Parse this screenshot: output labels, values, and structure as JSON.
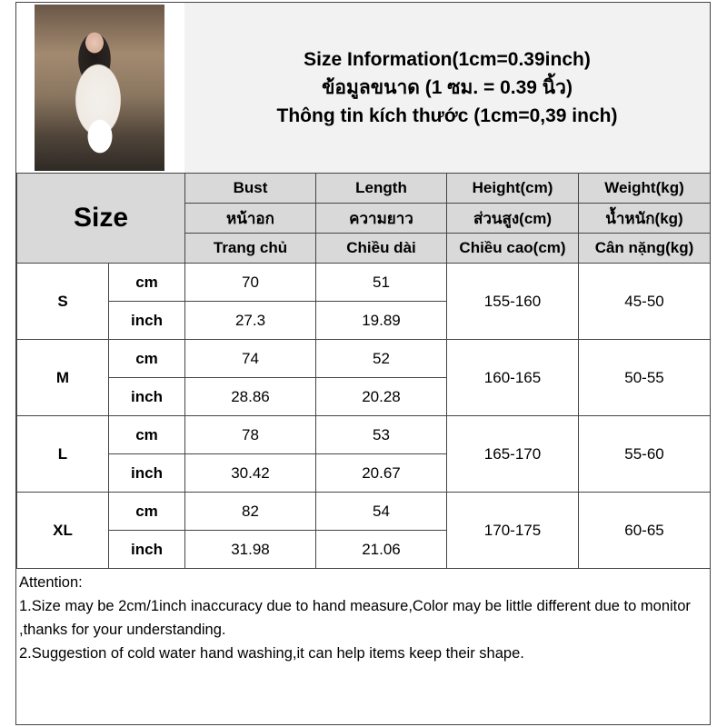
{
  "title_lines": [
    "Size Information(1cm=0.39inch)",
    "ข้อมูลขนาด (1 ซม. = 0.39 นิ้ว)",
    "Thông tin kích thước (1cm=0,39 inch)"
  ],
  "header": {
    "size_label": "Size",
    "columns": [
      {
        "en": "Bust",
        "th": "หน้าอก",
        "vi": "Trang chủ"
      },
      {
        "en": "Length",
        "th": "ความยาว",
        "vi": "Chiều dài"
      },
      {
        "en": "Height(cm)",
        "th": "ส่วนสูง(cm)",
        "vi": "Chiều cao(cm)"
      },
      {
        "en": "Weight(kg)",
        "th": "น้ำหนัก(kg)",
        "vi": "Cân nặng(kg)"
      }
    ]
  },
  "units": {
    "cm": "cm",
    "inch": "inch"
  },
  "rows": [
    {
      "size": "S",
      "bust_cm": "70",
      "length_cm": "51",
      "bust_in": "27.3",
      "length_in": "19.89",
      "height": "155-160",
      "weight": "45-50"
    },
    {
      "size": "M",
      "bust_cm": "74",
      "length_cm": "52",
      "bust_in": "28.86",
      "length_in": "20.28",
      "height": "160-165",
      "weight": "50-55"
    },
    {
      "size": "L",
      "bust_cm": "78",
      "length_cm": "53",
      "bust_in": "30.42",
      "length_in": "20.67",
      "height": "165-170",
      "weight": "55-60"
    },
    {
      "size": "XL",
      "bust_cm": "82",
      "length_cm": "54",
      "bust_in": "31.98",
      "length_in": "21.06",
      "height": "170-175",
      "weight": "60-65"
    }
  ],
  "notes": {
    "heading": "Attention:",
    "items": [
      "1.Size may be 2cm/1inch inaccuracy due to hand measure,Color may be little different due to monitor ,thanks for your understanding.",
      "2.Suggestion of cold water hand washing,it can help items keep their shape."
    ]
  }
}
